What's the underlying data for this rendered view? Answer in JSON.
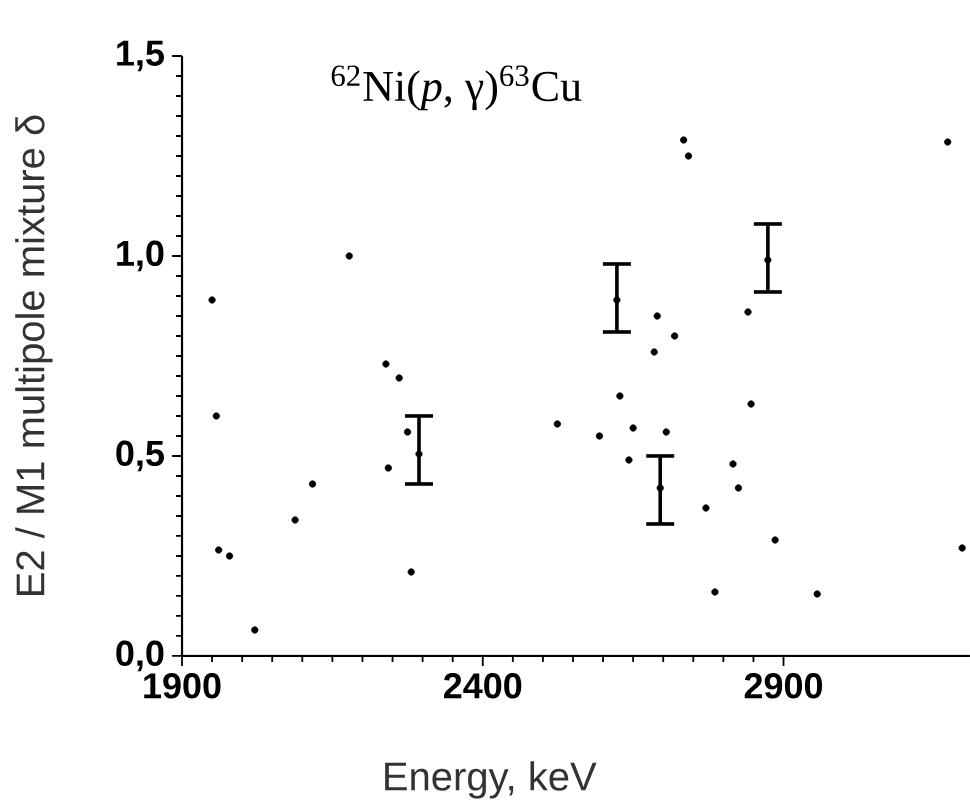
{
  "chart_data": {
    "type": "scatter",
    "title": "$^{62}$Ni(*p*, γ)$^{63}$Cu",
    "xlabel": "Energy, keV",
    "ylabel": "E2 / M1 multipole mixture δ",
    "xlim": [
      1900,
      3210
    ],
    "ylim": [
      0,
      1.5
    ],
    "xticks": [
      1900,
      2400,
      2900
    ],
    "yticks": [
      {
        "value": 0,
        "label": "0,0"
      },
      {
        "value": 0.5,
        "label": "0,5"
      },
      {
        "value": 1.0,
        "label": "1,0"
      },
      {
        "value": 1.5,
        "label": "1,5"
      }
    ],
    "marker": "circle",
    "series": [
      {
        "color": "#000000",
        "x": [
          1950,
          1957,
          1961,
          1979,
          2021,
          2088,
          2117,
          2178,
          2239,
          2261,
          2243,
          2281,
          2275,
          2524,
          2594,
          2628,
          2650,
          2705,
          2643,
          2690,
          2719,
          2685,
          2734,
          2742,
          2771,
          2786,
          2816,
          2825,
          2841,
          2846,
          2886,
          2956,
          3173,
          3197
        ],
        "values": [
          0.89,
          0.6,
          0.265,
          0.25,
          0.065,
          0.34,
          0.43,
          1.0,
          0.73,
          0.695,
          0.47,
          0.21,
          0.56,
          0.58,
          0.55,
          0.65,
          0.57,
          0.56,
          0.49,
          0.85,
          0.8,
          0.76,
          1.29,
          1.25,
          0.37,
          0.16,
          0.48,
          0.42,
          0.86,
          0.63,
          0.29,
          0.155,
          1.285,
          0.27
        ]
      },
      {
        "color": "#000000",
        "x": [
          2294,
          2623,
          2695,
          2874
        ],
        "values": [
          0.505,
          0.89,
          0.42,
          0.99
        ],
        "errors": [
          [
            0.43,
            0.6
          ],
          [
            0.81,
            0.98
          ],
          [
            0.33,
            0.5
          ],
          [
            0.91,
            1.08
          ]
        ]
      }
    ]
  }
}
